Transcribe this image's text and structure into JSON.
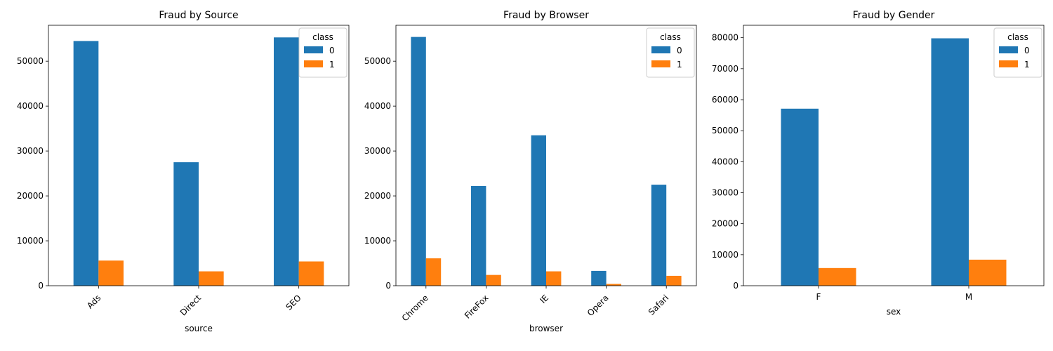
{
  "chart_data": [
    {
      "type": "bar",
      "title": "Fraud by Source",
      "xlabel": "source",
      "ylabel": "",
      "categories": [
        "Ads",
        "Direct",
        "SEO"
      ],
      "series": [
        {
          "name": "0",
          "values": [
            54500,
            27500,
            55300
          ]
        },
        {
          "name": "1",
          "values": [
            5600,
            3200,
            5400
          ]
        }
      ],
      "ylim": [
        0,
        58000
      ],
      "yticks": [
        0,
        10000,
        20000,
        30000,
        40000,
        50000
      ],
      "rotate_xticks": true,
      "legend": {
        "title": "class",
        "position": "upper right"
      }
    },
    {
      "type": "bar",
      "title": "Fraud by Browser",
      "xlabel": "browser",
      "ylabel": "",
      "categories": [
        "Chrome",
        "FireFox",
        "IE",
        "Opera",
        "Safari"
      ],
      "series": [
        {
          "name": "0",
          "values": [
            55400,
            22200,
            33500,
            3300,
            22500
          ]
        },
        {
          "name": "1",
          "values": [
            6100,
            2400,
            3200,
            400,
            2200
          ]
        }
      ],
      "ylim": [
        0,
        58000
      ],
      "yticks": [
        0,
        10000,
        20000,
        30000,
        40000,
        50000
      ],
      "rotate_xticks": true,
      "legend": {
        "title": "class",
        "position": "upper right"
      }
    },
    {
      "type": "bar",
      "title": "Fraud by Gender",
      "xlabel": "sex",
      "ylabel": "",
      "categories": [
        "F",
        "M"
      ],
      "series": [
        {
          "name": "0",
          "values": [
            57100,
            79800
          ]
        },
        {
          "name": "1",
          "values": [
            5700,
            8400
          ]
        }
      ],
      "ylim": [
        0,
        84000
      ],
      "yticks": [
        0,
        10000,
        20000,
        30000,
        40000,
        50000,
        60000,
        70000,
        80000
      ],
      "rotate_xticks": false,
      "legend": {
        "title": "class",
        "position": "upper right"
      }
    }
  ],
  "colors": {
    "series": [
      "#1f77b4",
      "#ff7f0e"
    ]
  }
}
